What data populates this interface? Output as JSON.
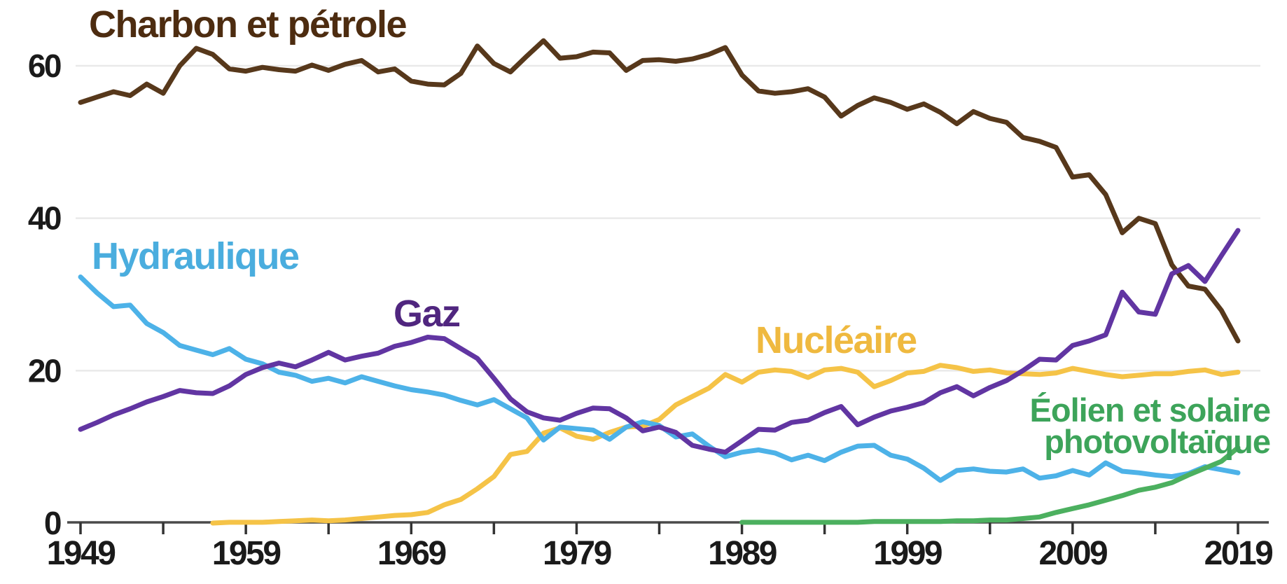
{
  "chart_data": {
    "type": "line",
    "title": "",
    "x_axis": {
      "range": [
        1949,
        2019
      ],
      "tick_step_years": 5,
      "label_step_years": 10,
      "tick_labels": [
        "1949",
        "1959",
        "1969",
        "1979",
        "1989",
        "1999",
        "2009",
        "2019"
      ]
    },
    "y_axis": {
      "range": [
        0,
        64
      ],
      "gridline_values": [
        20,
        40,
        60
      ],
      "tick_labels": [
        "0",
        "20",
        "40",
        "60"
      ]
    },
    "grid": true,
    "legend_position": "labels-on-chart",
    "series": [
      {
        "id": "coal_oil",
        "label": "Charbon et pétrole",
        "color": "#57381b",
        "label_color": "#4d2c10",
        "start_year": 1949,
        "values": [
          55.2,
          55.9,
          56.6,
          56.1,
          57.6,
          56.4,
          60.0,
          62.3,
          61.5,
          59.6,
          59.3,
          59.8,
          59.5,
          59.3,
          60.1,
          59.4,
          60.2,
          60.7,
          59.2,
          59.6,
          58.0,
          57.6,
          57.5,
          59.0,
          62.6,
          60.3,
          59.2,
          61.3,
          63.3,
          61.0,
          61.2,
          61.8,
          61.7,
          59.4,
          60.7,
          60.8,
          60.6,
          60.9,
          61.5,
          62.4,
          58.8,
          56.7,
          56.4,
          56.6,
          57.0,
          55.9,
          53.4,
          54.8,
          55.8,
          55.2,
          54.3,
          55.0,
          53.9,
          52.4,
          54.0,
          53.1,
          52.6,
          50.6,
          50.1,
          49.3,
          45.4,
          45.7,
          43.1,
          38.1,
          40.0,
          39.3,
          33.9,
          31.1,
          30.7,
          27.9,
          23.9
        ]
      },
      {
        "id": "nuclear",
        "label": "Nucléaire",
        "color": "#f5c347",
        "label_color": "#efb93f",
        "start_year": 1957,
        "values": [
          0.0,
          0.1,
          0.1,
          0.1,
          0.2,
          0.3,
          0.4,
          0.3,
          0.4,
          0.6,
          0.8,
          1.0,
          1.1,
          1.4,
          2.4,
          3.1,
          4.5,
          6.1,
          9.0,
          9.4,
          11.8,
          12.5,
          11.4,
          11.0,
          11.9,
          12.6,
          12.7,
          13.6,
          15.5,
          16.6,
          17.7,
          19.5,
          18.5,
          19.8,
          20.1,
          19.9,
          19.1,
          20.1,
          20.3,
          19.8,
          17.9,
          18.7,
          19.7,
          19.9,
          20.7,
          20.4,
          19.9,
          20.1,
          19.7,
          19.6,
          19.5,
          19.7,
          20.3,
          19.9,
          19.5,
          19.2,
          19.4,
          19.6,
          19.6,
          19.9,
          20.1,
          19.5,
          19.8
        ]
      },
      {
        "id": "hydro",
        "label": "Hydraulique",
        "color": "#4db2e8",
        "label_color": "#4aadde",
        "start_year": 1949,
        "values": [
          32.3,
          30.2,
          28.4,
          28.6,
          26.2,
          25.0,
          23.3,
          22.7,
          22.1,
          22.9,
          21.5,
          20.9,
          19.8,
          19.4,
          18.6,
          19.0,
          18.4,
          19.2,
          18.6,
          18.0,
          17.5,
          17.2,
          16.8,
          16.1,
          15.5,
          16.2,
          15.0,
          13.8,
          10.9,
          12.6,
          12.4,
          12.2,
          11.0,
          12.6,
          13.3,
          12.8,
          11.3,
          11.7,
          10.1,
          8.7,
          9.3,
          9.6,
          9.2,
          8.3,
          8.9,
          8.2,
          9.3,
          10.1,
          10.2,
          8.9,
          8.4,
          7.2,
          5.6,
          6.9,
          7.1,
          6.8,
          6.7,
          7.1,
          5.9,
          6.2,
          6.9,
          6.3,
          7.9,
          6.8,
          6.6,
          6.3,
          6.1,
          6.5,
          7.4,
          7.0,
          6.6
        ]
      },
      {
        "id": "gas",
        "label": "Gaz",
        "color": "#6135a2",
        "label_color": "#50267f",
        "start_year": 1949,
        "values": [
          12.3,
          13.2,
          14.2,
          15.0,
          15.9,
          16.6,
          17.4,
          17.1,
          17.0,
          18.0,
          19.5,
          20.4,
          21.0,
          20.5,
          21.4,
          22.4,
          21.4,
          21.9,
          22.3,
          23.2,
          23.7,
          24.4,
          24.2,
          22.9,
          21.6,
          19.0,
          16.3,
          14.6,
          13.8,
          13.5,
          14.4,
          15.1,
          15.0,
          13.8,
          12.1,
          12.6,
          11.9,
          10.2,
          9.7,
          9.3,
          10.8,
          12.3,
          12.2,
          13.2,
          13.5,
          14.5,
          15.3,
          12.9,
          13.9,
          14.7,
          15.2,
          15.8,
          17.1,
          17.9,
          16.7,
          17.8,
          18.7,
          20.0,
          21.5,
          21.4,
          23.3,
          23.9,
          24.7,
          30.3,
          27.7,
          27.4,
          32.7,
          33.8,
          31.7,
          35.1,
          38.4
        ]
      },
      {
        "id": "wind_solar_pv",
        "label": "Éolien et solaire photovoltaïque",
        "color": "#4cb05f",
        "label_color": "#3da45a",
        "start_year": 1989,
        "values": [
          0.1,
          0.1,
          0.1,
          0.1,
          0.1,
          0.1,
          0.1,
          0.1,
          0.2,
          0.2,
          0.2,
          0.2,
          0.2,
          0.3,
          0.3,
          0.4,
          0.4,
          0.6,
          0.8,
          1.4,
          1.9,
          2.4,
          3.0,
          3.6,
          4.3,
          4.7,
          5.3,
          6.3,
          7.2,
          8.1,
          9.9
        ]
      }
    ],
    "colors": {
      "background": "#ffffff",
      "gridline": "#e9e9e9",
      "axis_line": "#4a4a4a",
      "tick": "#333333",
      "tick_label": "#1a1a1a"
    }
  },
  "labels": {
    "coal_oil": "Charbon et pétrole",
    "hydro": "Hydraulique",
    "gas": "Gaz",
    "nuclear": "Nucléaire",
    "wind_solar_line1": "Éolien et solaire",
    "wind_solar_line2": "photovoltaïque"
  }
}
